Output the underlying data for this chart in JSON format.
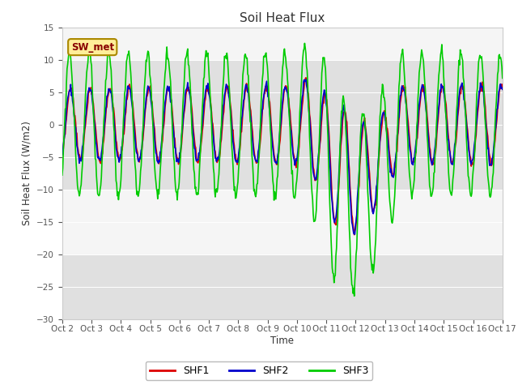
{
  "title": "Soil Heat Flux",
  "ylabel": "Soil Heat Flux (W/m2)",
  "xlabel": "Time",
  "ylim": [
    -30,
    15
  ],
  "yticks": [
    -30,
    -25,
    -20,
    -15,
    -10,
    -5,
    0,
    5,
    10,
    15
  ],
  "xtick_labels": [
    "Oct 2",
    "Oct 3",
    "Oct 4",
    "Oct 5",
    "Oct 6",
    "Oct 7",
    "Oct 8",
    "Oct 9",
    "Oct 10",
    "Oct 11",
    "Oct 12",
    "Oct 13",
    "Oct 14",
    "Oct 15",
    "Oct 16",
    "Oct 17"
  ],
  "fig_bg_color": "#ffffff",
  "plot_bg_color": "#f5f5f5",
  "band_color_dark": "#e0e0e0",
  "shf1_color": "#dd0000",
  "shf2_color": "#0000cc",
  "shf3_color": "#00cc00",
  "legend_labels": [
    "SHF1",
    "SHF2",
    "SHF3"
  ],
  "sw_met_label": "SW_met",
  "annotation_box_color": "#ffee99",
  "annotation_text_color": "#880000",
  "annotation_edge_color": "#aa8800",
  "days": 15
}
